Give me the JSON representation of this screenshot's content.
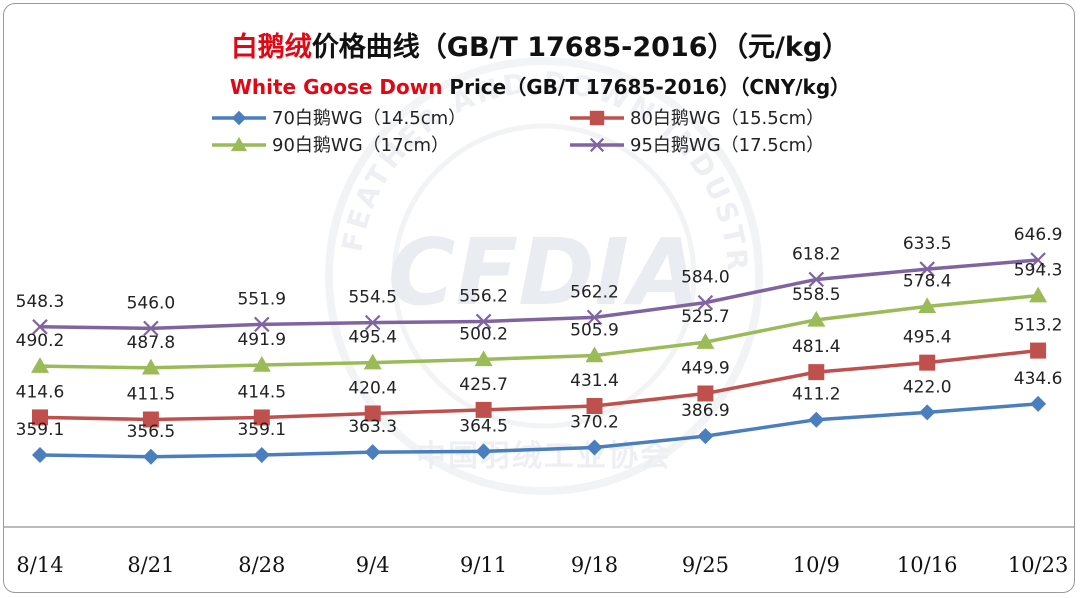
{
  "title": {
    "line1_highlight": "白鹅绒",
    "line1_rest": "价格曲线（GB/T 17685-2016）（元/kg）",
    "line2_highlight": "White Goose Down",
    "line2_rest": " Price（GB/T 17685-2016）（CNY/kg）"
  },
  "watermark": {
    "logo_text": "CFDIA",
    "ring_text": "FEATHER AND DOWN INDUSTRIAL ASSOCIATION",
    "bottom_text": "中国羽绒工业协会"
  },
  "chart_data": {
    "type": "line",
    "categories": [
      "8/14",
      "8/21",
      "8/28",
      "9/4",
      "9/11",
      "9/18",
      "9/25",
      "10/9",
      "10/16",
      "10/23"
    ],
    "ylim": [
      300,
      720
    ],
    "grid": false,
    "legend_placement": "top",
    "series": [
      {
        "name": "70白鹅WG（14.5cm）",
        "color": "#4a7ebf",
        "marker": "diamond",
        "values": [
          359.1,
          356.5,
          359.1,
          363.3,
          364.5,
          370.2,
          386.9,
          411.2,
          422.0,
          434.6
        ],
        "labels": [
          "359.1",
          "356.5",
          "359.1",
          "363.3",
          "364.5",
          "370.2",
          "386.9",
          "411.2",
          "422.0",
          "434.6"
        ]
      },
      {
        "name": "80白鹅WG（15.5cm）",
        "color": "#c0504d",
        "marker": "square",
        "values": [
          414.6,
          411.5,
          414.5,
          420.4,
          425.7,
          431.4,
          449.9,
          481.4,
          495.4,
          513.2
        ],
        "labels": [
          "414.6",
          "411.5",
          "414.5",
          "420.4",
          "425.7",
          "431.4",
          "449.9",
          "481.4",
          "495.4",
          "513.2"
        ]
      },
      {
        "name": "90白鹅WG（17cm）",
        "color": "#9bbb59",
        "marker": "triangle",
        "values": [
          490.2,
          487.8,
          491.9,
          495.4,
          500.2,
          505.9,
          525.7,
          558.5,
          578.4,
          594.3
        ],
        "labels": [
          "490.2",
          "487.8",
          "491.9",
          "495.4",
          "500.2",
          "505.9",
          "525.7",
          "558.5",
          "578.4",
          "594.3"
        ]
      },
      {
        "name": "95白鹅WG（17.5cm）",
        "color": "#8064a2",
        "marker": "x",
        "values": [
          548.3,
          546.0,
          551.9,
          554.5,
          556.2,
          562.2,
          584.0,
          618.2,
          633.5,
          646.9
        ],
        "labels": [
          "548.3",
          "546.0",
          "551.9",
          "554.5",
          "556.2",
          "562.2",
          "584.0",
          "618.2",
          "633.5",
          "646.9"
        ]
      }
    ]
  }
}
